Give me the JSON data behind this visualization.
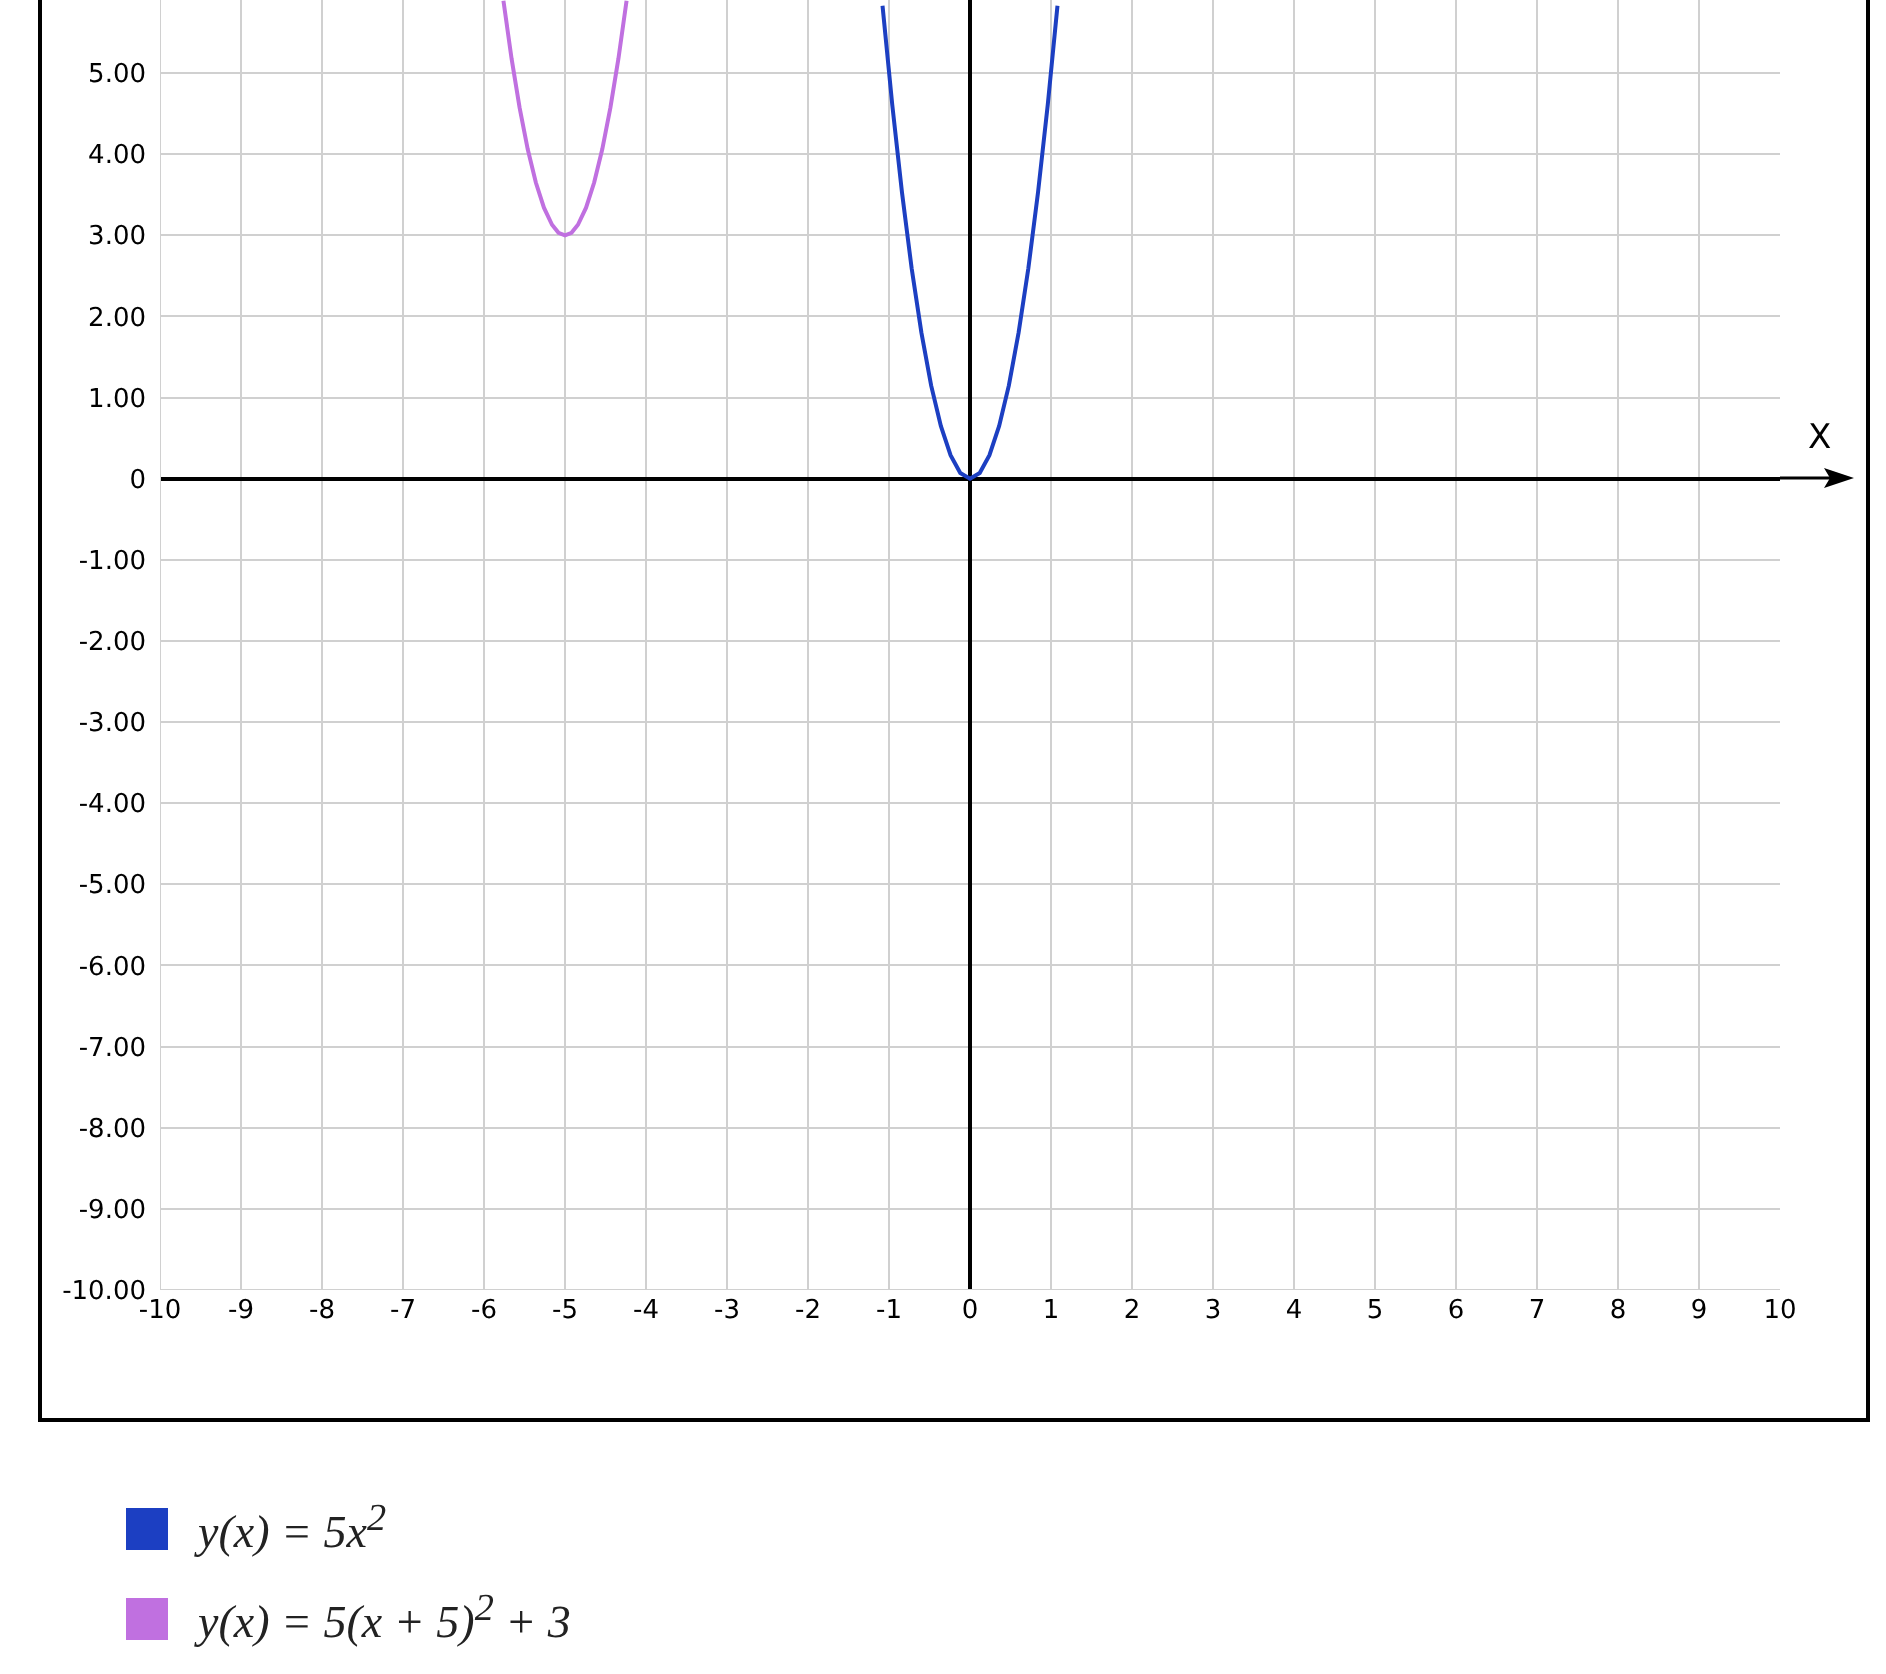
{
  "chart_data": {
    "type": "line",
    "xlabel": "X",
    "xlim": [
      -10,
      10
    ],
    "ylim": [
      -10,
      5.9
    ],
    "xticks": [
      -10,
      -9,
      -8,
      -7,
      -6,
      -5,
      -4,
      -3,
      -2,
      -1,
      0,
      1,
      2,
      3,
      4,
      5,
      6,
      7,
      8,
      9,
      10
    ],
    "yticks": [
      {
        "value": -10,
        "label": "-10.00"
      },
      {
        "value": -9,
        "label": "-9.00"
      },
      {
        "value": -8,
        "label": "-8.00"
      },
      {
        "value": -7,
        "label": "-7.00"
      },
      {
        "value": -6,
        "label": "-6.00"
      },
      {
        "value": -5,
        "label": "-5.00"
      },
      {
        "value": -4,
        "label": "-4.00"
      },
      {
        "value": -3,
        "label": "-3.00"
      },
      {
        "value": -2,
        "label": "-2.00"
      },
      {
        "value": -1,
        "label": "-1.00"
      },
      0,
      {
        "value": 1,
        "label": "1.00"
      },
      {
        "value": 2,
        "label": "2.00"
      },
      {
        "value": 3,
        "label": "3.00"
      },
      {
        "value": 4,
        "label": "4.00"
      },
      {
        "value": 5,
        "label": "5.00"
      }
    ],
    "grid": true,
    "legend": "bottom",
    "series": [
      {
        "name": "y(x) = 5x$^{2}$",
        "color": "#1c3fc2",
        "x": [
          -1.08,
          -0.96,
          -0.84,
          -0.72,
          -0.6,
          -0.48,
          -0.36,
          -0.24,
          -0.12,
          0,
          0.12,
          0.24,
          0.36,
          0.48,
          0.6,
          0.72,
          0.84,
          0.96,
          1.08
        ],
        "values": [
          5.83,
          4.61,
          3.53,
          2.59,
          1.8,
          1.15,
          0.65,
          0.29,
          0.07,
          0,
          0.07,
          0.29,
          0.65,
          1.15,
          1.8,
          2.59,
          3.53,
          4.61,
          5.83
        ]
      },
      {
        "name": "y(x) = 5(x + 5)$^{2}$ + 3",
        "color": "#c070e0",
        "x": [
          -5.76,
          -5.66,
          -5.56,
          -5.46,
          -5.36,
          -5.26,
          -5.16,
          -5.08,
          -5,
          -4.92,
          -4.84,
          -4.74,
          -4.64,
          -4.54,
          -4.44,
          -4.34,
          -4.24
        ],
        "values": [
          5.89,
          5.18,
          4.57,
          4.06,
          3.65,
          3.34,
          3.13,
          3.03,
          3,
          3.03,
          3.13,
          3.34,
          3.65,
          4.06,
          4.57,
          5.18,
          5.89
        ]
      }
    ]
  }
}
